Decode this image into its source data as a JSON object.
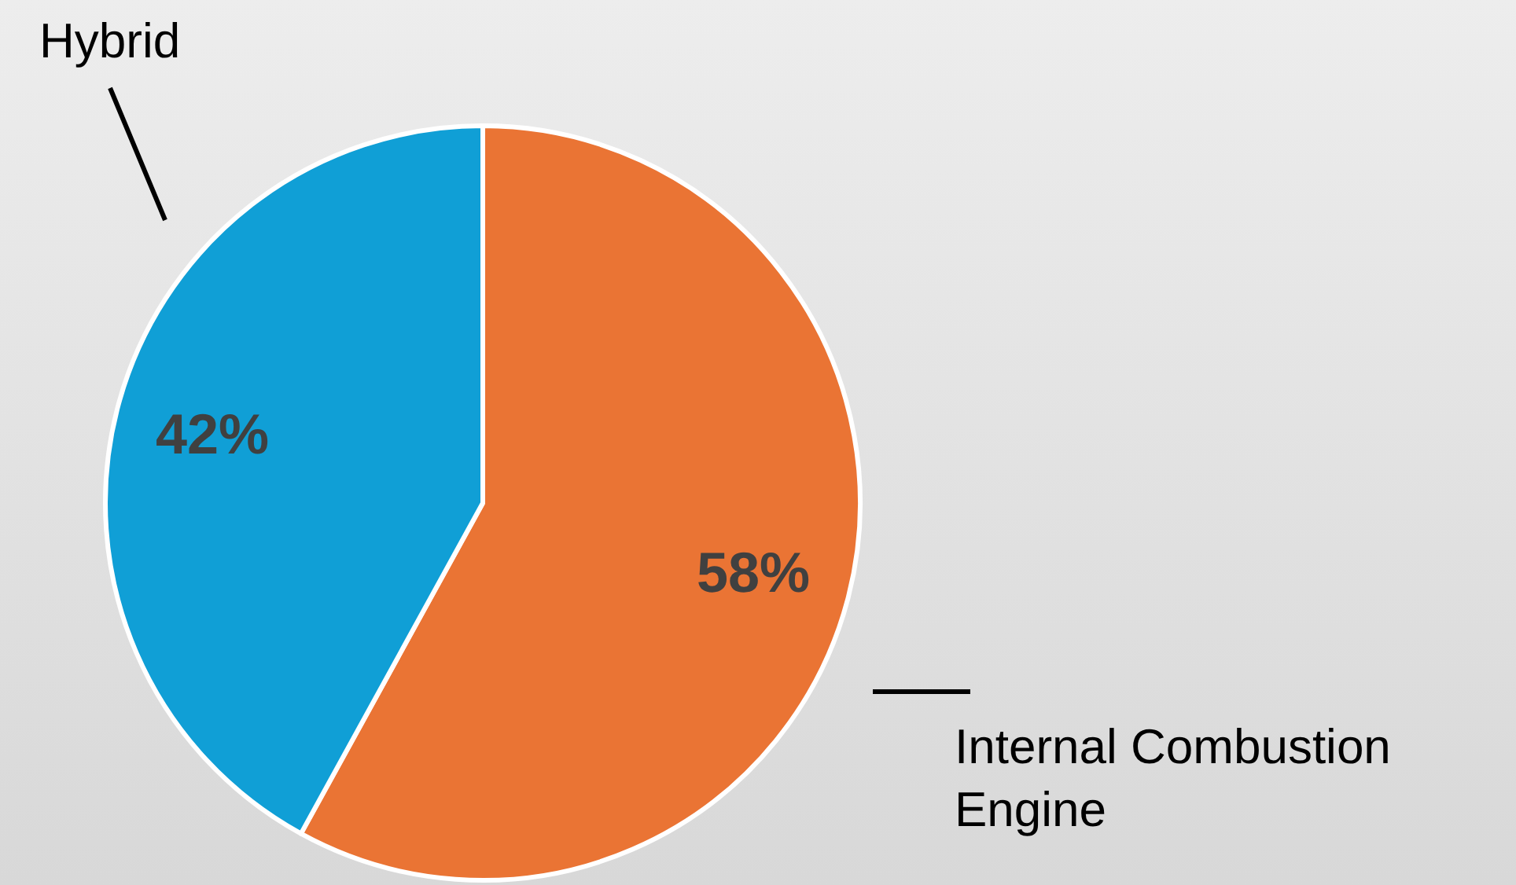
{
  "chart_data": {
    "type": "pie",
    "categories": [
      "Internal Combustion Engine",
      "Hybrid"
    ],
    "values": [
      58,
      42
    ],
    "value_labels": [
      "58%",
      "42%"
    ],
    "colors": [
      "#ea7434",
      "#109fd6"
    ],
    "legend": false
  }
}
